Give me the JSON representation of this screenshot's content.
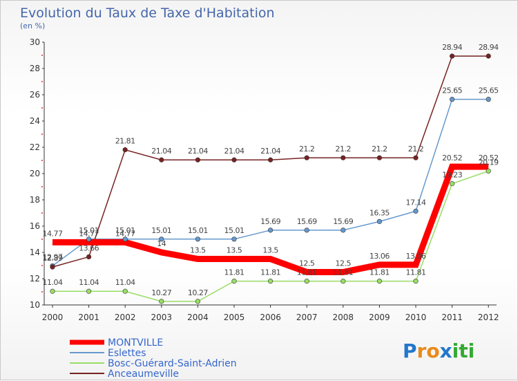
{
  "chart_data": {
    "type": "line",
    "title": "Evolution du Taux de Taxe d'Habitation",
    "subtitle": "(en %)",
    "x": [
      "2000",
      "2001",
      "2002",
      "2003",
      "2004",
      "2005",
      "2006",
      "2007",
      "2008",
      "2009",
      "2010",
      "2011",
      "2012"
    ],
    "ylim": [
      10,
      30
    ],
    "yticks": [
      10,
      12,
      14,
      16,
      18,
      20,
      22,
      24,
      26,
      28,
      30
    ],
    "grid": false,
    "legend_position": "bottom-left",
    "series": [
      {
        "name": "MONTVILLE",
        "color": "#ff0000",
        "values": [
          14.77,
          14.77,
          14.77,
          14,
          13.5,
          13.5,
          13.5,
          12.5,
          12.5,
          13.06,
          13.06,
          20.52,
          20.52
        ],
        "labels": [
          "14.77",
          "14.77",
          "14.77",
          "14",
          "13.5",
          "13.5",
          "13.5",
          "12.5",
          "12.5",
          "13.06",
          "13.06",
          "20.52",
          "20.52"
        ]
      },
      {
        "name": "Eslettes",
        "color": "#6699cc",
        "values": [
          12.97,
          15.01,
          15.01,
          15.01,
          15.01,
          15.01,
          15.69,
          15.69,
          15.69,
          16.35,
          17.14,
          25.65,
          25.65
        ],
        "labels": [
          "12.97",
          "15.01",
          "15.01",
          "15.01",
          "15.01",
          "15.01",
          "15.69",
          "15.69",
          "15.69",
          "16.35",
          "17.14",
          "25.65",
          "25.65"
        ]
      },
      {
        "name": "Bosc-Guérard-Saint-Adrien",
        "color": "#99dd66",
        "values": [
          11.04,
          11.04,
          11.04,
          10.27,
          10.27,
          11.81,
          11.81,
          11.81,
          11.81,
          11.81,
          11.81,
          19.23,
          20.19
        ],
        "labels": [
          "11.04",
          "11.04",
          "11.04",
          "10.27",
          "10.27",
          "11.81",
          "11.81",
          "11.81",
          "11.81",
          "11.81",
          "11.81",
          "19.23",
          "20.19"
        ]
      },
      {
        "name": "Anceaumeville",
        "color": "#772222",
        "values": [
          12.89,
          13.66,
          21.81,
          21.04,
          21.04,
          21.04,
          21.04,
          21.2,
          21.2,
          21.2,
          21.2,
          28.94,
          28.94
        ],
        "labels": [
          "12.89",
          "13.66",
          "21.81",
          "21.04",
          "21.04",
          "21.04",
          "21.04",
          "21.2",
          "21.2",
          "21.2",
          "21.2",
          "28.94",
          "28.94"
        ]
      }
    ]
  },
  "logo": {
    "letters": [
      "P",
      "r",
      "o",
      "x",
      "i",
      "t",
      "i"
    ],
    "colors": [
      "#2277cc",
      "#e98a1b",
      "#e98a1b",
      "#2277cc",
      "#33aa33",
      "#33aa33",
      "#33aa33"
    ]
  }
}
